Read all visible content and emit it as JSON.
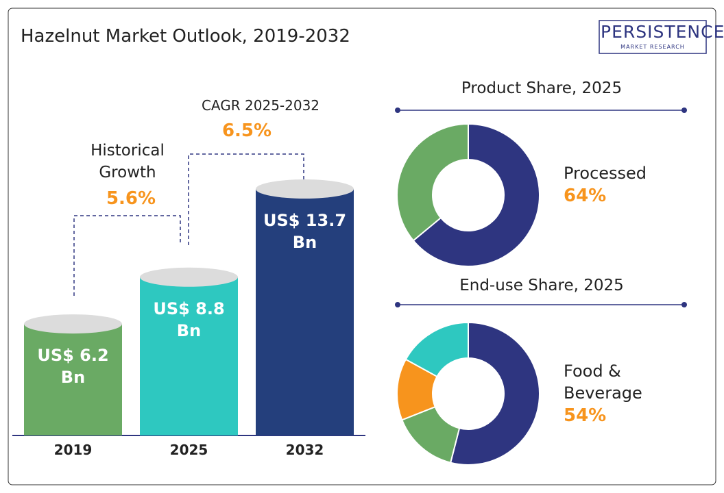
{
  "title": "Hazelnut Market Outlook, 2019-2032",
  "logo": {
    "name": "PERSISTENCE",
    "tagline": "MARKET RESEARCH"
  },
  "chart_data": [
    {
      "type": "bar",
      "categories": [
        "2019",
        "2025",
        "2032"
      ],
      "values": [
        6.2,
        8.8,
        13.7
      ],
      "value_labels": [
        "US$ 6.2 Bn",
        "US$ 8.8 Bn",
        "US$ 13.7 Bn"
      ],
      "colors": [
        "#6aaa64",
        "#2ec8c0",
        "#243f7c"
      ],
      "annotations": [
        {
          "label": "Historical Growth",
          "value": "5.6%"
        },
        {
          "label": "CAGR 2025-2032",
          "value": "6.5%"
        }
      ]
    },
    {
      "type": "pie",
      "title": "Product Share, 2025",
      "categories": [
        "Processed",
        null
      ],
      "values": [
        64,
        36
      ],
      "value_labels": [
        "64%",
        null
      ],
      "colors": [
        "#2e3580",
        "#6aaa64"
      ]
    },
    {
      "type": "pie",
      "title": "End-use Share, 2025",
      "categories": [
        "Food & Beverage",
        null,
        null,
        null
      ],
      "values": [
        54,
        15,
        14,
        17
      ],
      "value_labels": [
        "54%",
        null,
        null,
        null
      ],
      "colors": [
        "#2e3580",
        "#6aaa64",
        "#f7941d",
        "#2ec8c0"
      ]
    }
  ]
}
